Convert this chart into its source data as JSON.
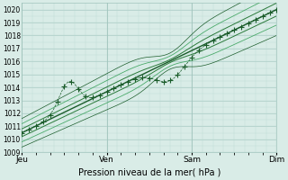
{
  "xlabel": "Pression niveau de la mer( hPa )",
  "ylim": [
    1009,
    1020.5
  ],
  "yticks": [
    1009,
    1010,
    1011,
    1012,
    1013,
    1014,
    1015,
    1016,
    1017,
    1018,
    1019,
    1020
  ],
  "xtick_labels": [
    "Jeu",
    "Ven",
    "Sam",
    "Dim"
  ],
  "xtick_positions": [
    0.0,
    1.0,
    2.0,
    3.0
  ],
  "bg_color": "#d9ece7",
  "grid_color_major": "#a0c4bc",
  "grid_color_minor": "#b8d8d0",
  "line_color_dark": "#1a5c2a",
  "line_color_mid": "#2a7a3a",
  "line_color_light": "#4aaa6a",
  "dot_color": "#1a5c2a"
}
